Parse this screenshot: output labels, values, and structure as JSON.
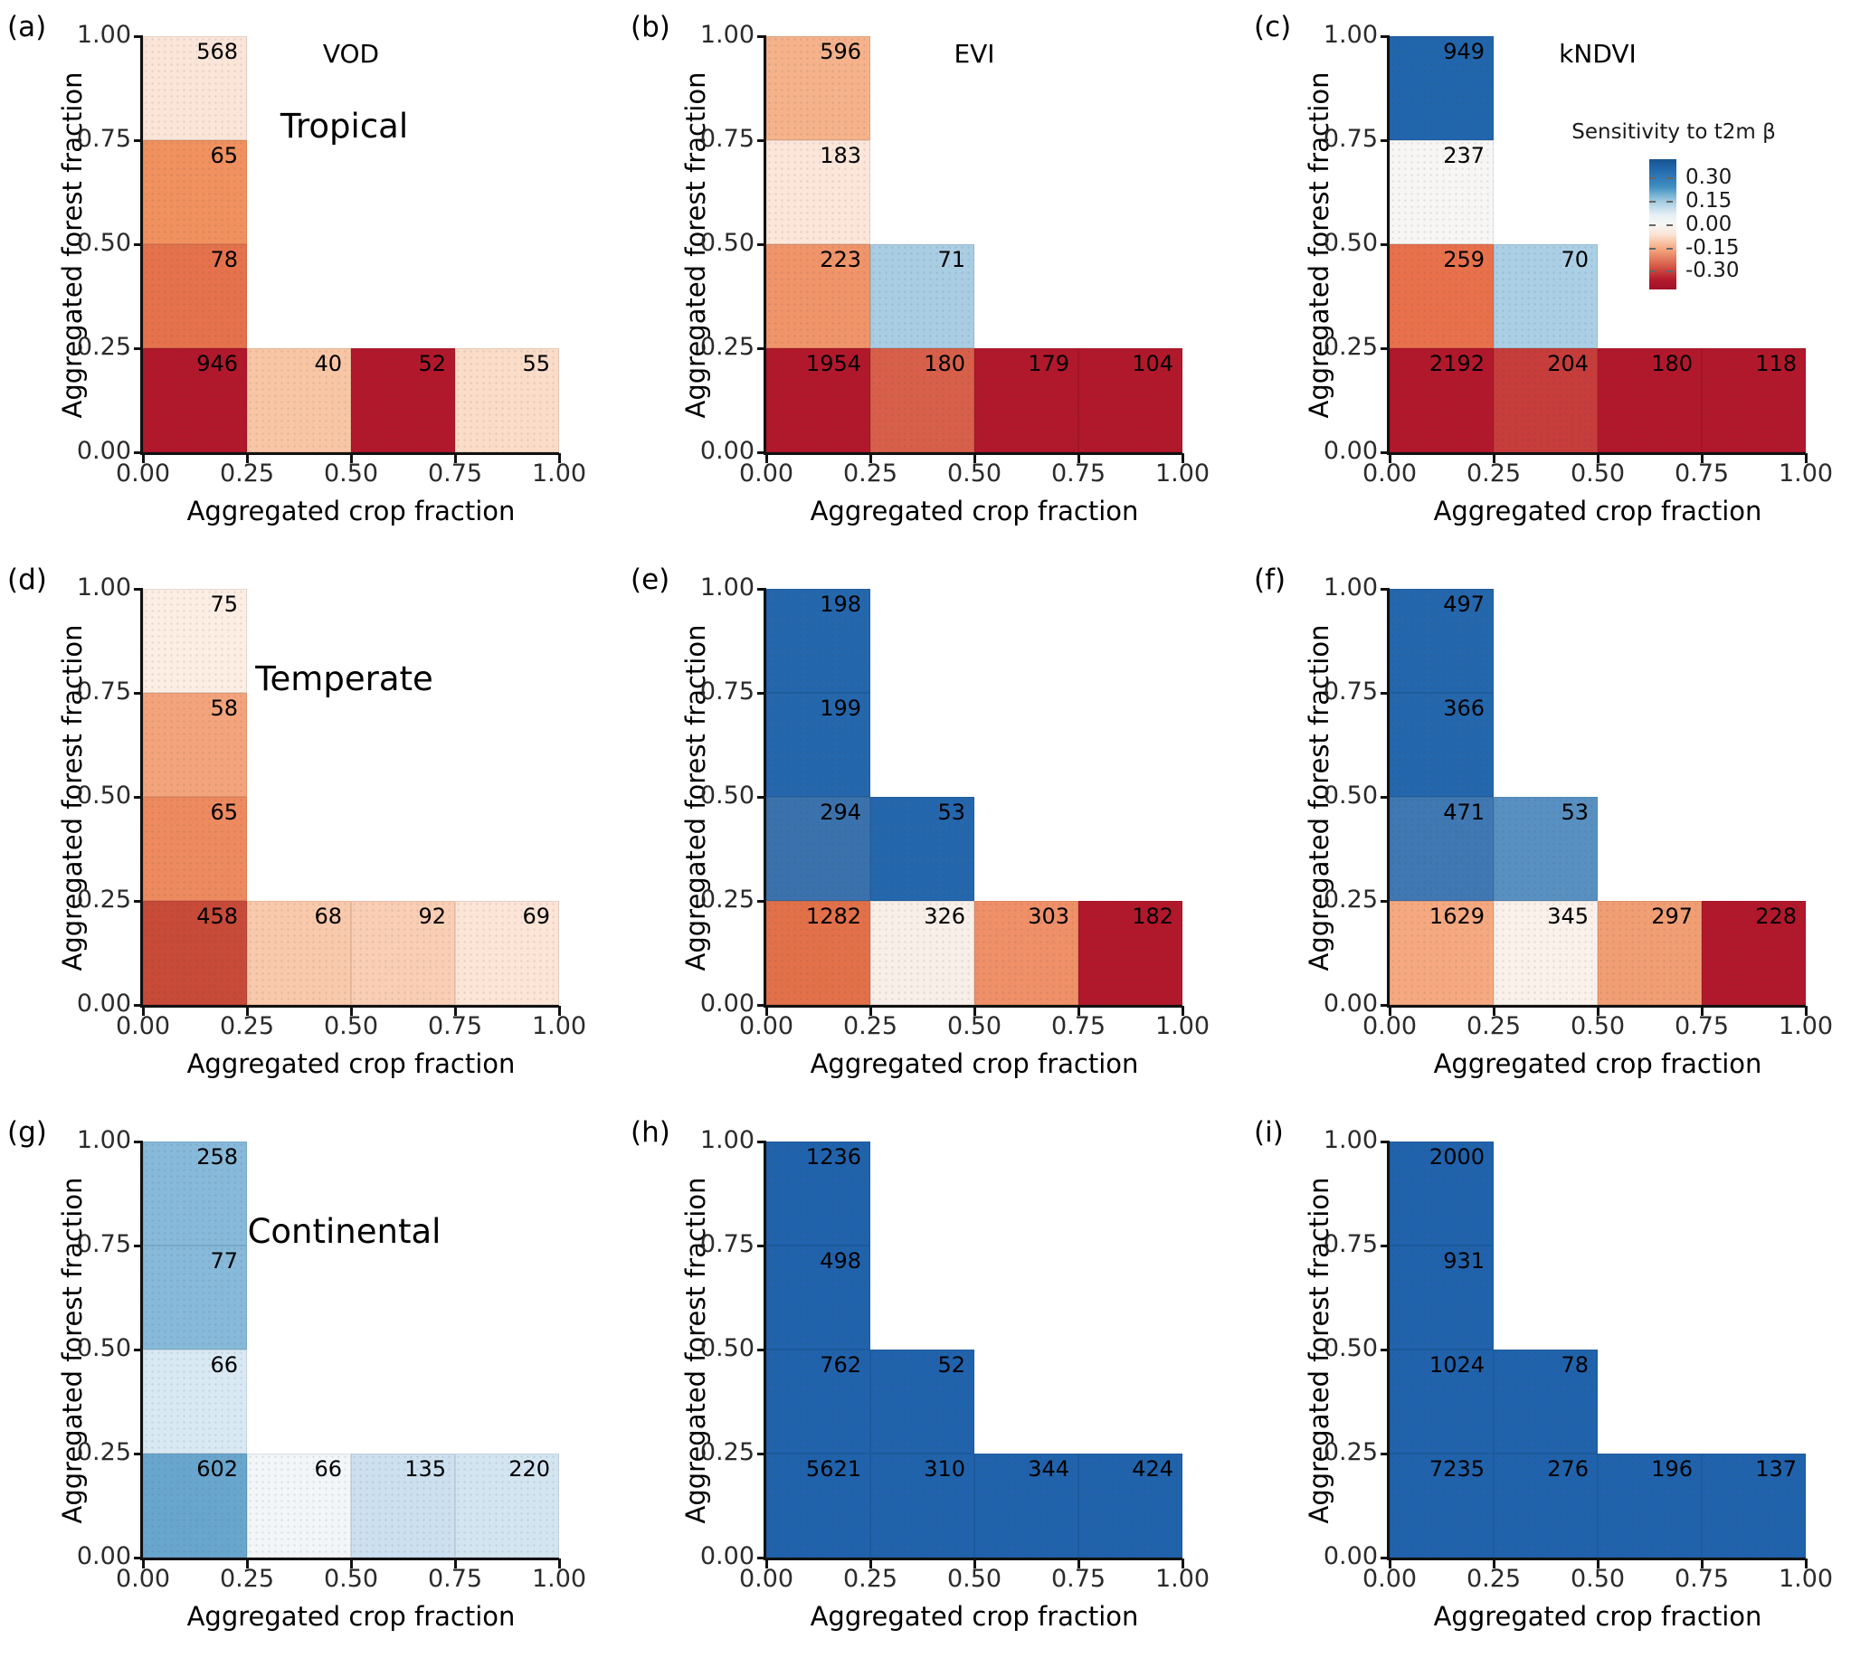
{
  "axes": {
    "y_label": "Aggregated forest fraction",
    "x_label": "Aggregated crop fraction",
    "y_ticks": [
      "1.00",
      "0.75",
      "0.50",
      "0.25",
      "0.00"
    ],
    "x_ticks": [
      "0.00",
      "0.25",
      "0.50",
      "0.75",
      "1.00"
    ]
  },
  "colorbar": {
    "title": "Sensitivity to t2m β",
    "tick_labels": [
      "0.30",
      "0.15",
      "0.00",
      "-0.15",
      "-0.30"
    ],
    "colormap": "RdBu",
    "top_color": "#2166ac",
    "mid_color": "#f7f7f7",
    "bottom_color": "#b2182b",
    "value_range": [
      -0.42,
      0.42
    ]
  },
  "chart_data": {
    "type": "heatmap",
    "title": "Sensitivity to t2m β binned by aggregated crop and forest fraction",
    "xlabel": "Aggregated crop fraction",
    "ylabel": "Aggregated forest fraction",
    "x_bins": [
      "0.00-0.25",
      "0.25-0.50",
      "0.50-0.75",
      "0.75-1.00"
    ],
    "y_bins_top_to_bottom": [
      "0.75-1.00",
      "0.50-0.75",
      "0.25-0.50",
      "0.00-0.25"
    ],
    "cell_label_meaning": "sample count per bin",
    "panels": [
      {
        "letter": "(a)",
        "title": "VOD",
        "region": "Tropical",
        "cells": [
          {
            "x": 0,
            "y": 0,
            "count": "568",
            "color": "#fbe5d8",
            "sens": -0.03
          },
          {
            "x": 0,
            "y": 1,
            "count": "65",
            "color": "#f0915f",
            "sens": -0.2
          },
          {
            "x": 0,
            "y": 2,
            "count": "78",
            "color": "#e5724c",
            "sens": -0.24
          },
          {
            "x": 0,
            "y": 3,
            "count": "946",
            "color": "#b2182b",
            "sens": -0.4
          },
          {
            "x": 1,
            "y": 3,
            "count": "40",
            "color": "#f9c6a5",
            "sens": -0.1
          },
          {
            "x": 2,
            "y": 3,
            "count": "52",
            "color": "#b2182b",
            "sens": -0.4
          },
          {
            "x": 3,
            "y": 3,
            "count": "55",
            "color": "#fbdcc8",
            "sens": -0.06
          }
        ]
      },
      {
        "letter": "(b)",
        "title": "EVI",
        "region": "",
        "cells": [
          {
            "x": 0,
            "y": 0,
            "count": "596",
            "color": "#f5b28b",
            "sens": -0.13
          },
          {
            "x": 0,
            "y": 1,
            "count": "183",
            "color": "#fbe6d9",
            "sens": -0.03
          },
          {
            "x": 0,
            "y": 2,
            "count": "223",
            "color": "#f0946a",
            "sens": -0.19
          },
          {
            "x": 1,
            "y": 2,
            "count": "71",
            "color": "#a9cde3",
            "sens": 0.17
          },
          {
            "x": 0,
            "y": 3,
            "count": "1954",
            "color": "#b2182b",
            "sens": -0.42
          },
          {
            "x": 1,
            "y": 3,
            "count": "180",
            "color": "#d8604a",
            "sens": -0.3
          },
          {
            "x": 2,
            "y": 3,
            "count": "179",
            "color": "#b2182b",
            "sens": -0.4
          },
          {
            "x": 3,
            "y": 3,
            "count": "104",
            "color": "#b2182b",
            "sens": -0.4
          }
        ]
      },
      {
        "letter": "(c)",
        "title": "kNDVI",
        "region": "",
        "cells": [
          {
            "x": 0,
            "y": 0,
            "count": "949",
            "color": "#2166ac",
            "sens": 0.38
          },
          {
            "x": 0,
            "y": 1,
            "count": "237",
            "color": "#f7f6f5",
            "sens": 0.0
          },
          {
            "x": 0,
            "y": 2,
            "count": "259",
            "color": "#e8714c",
            "sens": -0.24
          },
          {
            "x": 1,
            "y": 2,
            "count": "70",
            "color": "#abcfe5",
            "sens": 0.16
          },
          {
            "x": 0,
            "y": 3,
            "count": "2192",
            "color": "#b2182b",
            "sens": -0.42
          },
          {
            "x": 1,
            "y": 3,
            "count": "204",
            "color": "#c63d3c",
            "sens": -0.34
          },
          {
            "x": 2,
            "y": 3,
            "count": "180",
            "color": "#b2182b",
            "sens": -0.4
          },
          {
            "x": 3,
            "y": 3,
            "count": "118",
            "color": "#b2182b",
            "sens": -0.4
          }
        ]
      },
      {
        "letter": "(d)",
        "title": "",
        "region": "Temperate",
        "cells": [
          {
            "x": 0,
            "y": 0,
            "count": "75",
            "color": "#fdeee4",
            "sens": -0.02
          },
          {
            "x": 0,
            "y": 1,
            "count": "58",
            "color": "#f4a47c",
            "sens": -0.15
          },
          {
            "x": 0,
            "y": 2,
            "count": "65",
            "color": "#ee8a5f",
            "sens": -0.21
          },
          {
            "x": 0,
            "y": 3,
            "count": "458",
            "color": "#c84a38",
            "sens": -0.33
          },
          {
            "x": 1,
            "y": 3,
            "count": "68",
            "color": "#f9c9ab",
            "sens": -0.09
          },
          {
            "x": 2,
            "y": 3,
            "count": "92",
            "color": "#f9ceb4",
            "sens": -0.08
          },
          {
            "x": 3,
            "y": 3,
            "count": "69",
            "color": "#fce5d7",
            "sens": -0.04
          }
        ]
      },
      {
        "letter": "(e)",
        "title": "",
        "region": "",
        "cells": [
          {
            "x": 0,
            "y": 0,
            "count": "198",
            "color": "#2467ad",
            "sens": 0.38
          },
          {
            "x": 0,
            "y": 1,
            "count": "199",
            "color": "#2467ad",
            "sens": 0.38
          },
          {
            "x": 0,
            "y": 2,
            "count": "294",
            "color": "#3b72ad",
            "sens": 0.33
          },
          {
            "x": 1,
            "y": 2,
            "count": "53",
            "color": "#2467ad",
            "sens": 0.37
          },
          {
            "x": 0,
            "y": 3,
            "count": "1282",
            "color": "#e2714a",
            "sens": -0.25
          },
          {
            "x": 1,
            "y": 3,
            "count": "326",
            "color": "#f8efe9",
            "sens": -0.01
          },
          {
            "x": 2,
            "y": 3,
            "count": "303",
            "color": "#ef9069",
            "sens": -0.18
          },
          {
            "x": 3,
            "y": 3,
            "count": "182",
            "color": "#b2182b",
            "sens": -0.4
          }
        ]
      },
      {
        "letter": "(f)",
        "title": "",
        "region": "",
        "cells": [
          {
            "x": 0,
            "y": 0,
            "count": "497",
            "color": "#2467ad",
            "sens": 0.38
          },
          {
            "x": 0,
            "y": 1,
            "count": "366",
            "color": "#2467ad",
            "sens": 0.38
          },
          {
            "x": 0,
            "y": 2,
            "count": "471",
            "color": "#3f78b3",
            "sens": 0.32
          },
          {
            "x": 1,
            "y": 2,
            "count": "53",
            "color": "#5890c2",
            "sens": 0.27
          },
          {
            "x": 0,
            "y": 3,
            "count": "1629",
            "color": "#f6a980",
            "sens": -0.13
          },
          {
            "x": 1,
            "y": 3,
            "count": "345",
            "color": "#faf1ea",
            "sens": -0.01
          },
          {
            "x": 2,
            "y": 3,
            "count": "297",
            "color": "#f19e74",
            "sens": -0.16
          },
          {
            "x": 3,
            "y": 3,
            "count": "228",
            "color": "#b2182b",
            "sens": -0.4
          }
        ]
      },
      {
        "letter": "(g)",
        "title": "",
        "region": "Continental",
        "cells": [
          {
            "x": 0,
            "y": 0,
            "count": "258",
            "color": "#87b9da",
            "sens": 0.22
          },
          {
            "x": 0,
            "y": 1,
            "count": "77",
            "color": "#87b9da",
            "sens": 0.22
          },
          {
            "x": 0,
            "y": 2,
            "count": "66",
            "color": "#d9e9f4",
            "sens": 0.1
          },
          {
            "x": 0,
            "y": 3,
            "count": "602",
            "color": "#69a6ce",
            "sens": 0.26
          },
          {
            "x": 1,
            "y": 3,
            "count": "66",
            "color": "#f2f6f9",
            "sens": 0.03
          },
          {
            "x": 2,
            "y": 3,
            "count": "135",
            "color": "#cce0f0",
            "sens": 0.12
          },
          {
            "x": 3,
            "y": 3,
            "count": "220",
            "color": "#d4e5f2",
            "sens": 0.1
          }
        ]
      },
      {
        "letter": "(h)",
        "title": "",
        "region": "",
        "cells": [
          {
            "x": 0,
            "y": 0,
            "count": "1236",
            "color": "#2063ac",
            "sens": 0.38
          },
          {
            "x": 0,
            "y": 1,
            "count": "498",
            "color": "#2063ac",
            "sens": 0.38
          },
          {
            "x": 0,
            "y": 2,
            "count": "762",
            "color": "#2063ac",
            "sens": 0.38
          },
          {
            "x": 1,
            "y": 2,
            "count": "52",
            "color": "#2063ac",
            "sens": 0.38
          },
          {
            "x": 0,
            "y": 3,
            "count": "5621",
            "color": "#2063ac",
            "sens": 0.38
          },
          {
            "x": 1,
            "y": 3,
            "count": "310",
            "color": "#2063ac",
            "sens": 0.38
          },
          {
            "x": 2,
            "y": 3,
            "count": "344",
            "color": "#2063ac",
            "sens": 0.38
          },
          {
            "x": 3,
            "y": 3,
            "count": "424",
            "color": "#2063ac",
            "sens": 0.38
          }
        ]
      },
      {
        "letter": "(i)",
        "title": "",
        "region": "",
        "cells": [
          {
            "x": 0,
            "y": 0,
            "count": "2000",
            "color": "#2063ac",
            "sens": 0.38
          },
          {
            "x": 0,
            "y": 1,
            "count": "931",
            "color": "#2063ac",
            "sens": 0.38
          },
          {
            "x": 0,
            "y": 2,
            "count": "1024",
            "color": "#2063ac",
            "sens": 0.38
          },
          {
            "x": 1,
            "y": 2,
            "count": "78",
            "color": "#2063ac",
            "sens": 0.38
          },
          {
            "x": 0,
            "y": 3,
            "count": "7235",
            "color": "#2063ac",
            "sens": 0.38
          },
          {
            "x": 1,
            "y": 3,
            "count": "276",
            "color": "#2063ac",
            "sens": 0.38
          },
          {
            "x": 2,
            "y": 3,
            "count": "196",
            "color": "#2063ac",
            "sens": 0.38
          },
          {
            "x": 3,
            "y": 3,
            "count": "137",
            "color": "#2063ac",
            "sens": 0.38
          }
        ]
      }
    ]
  }
}
